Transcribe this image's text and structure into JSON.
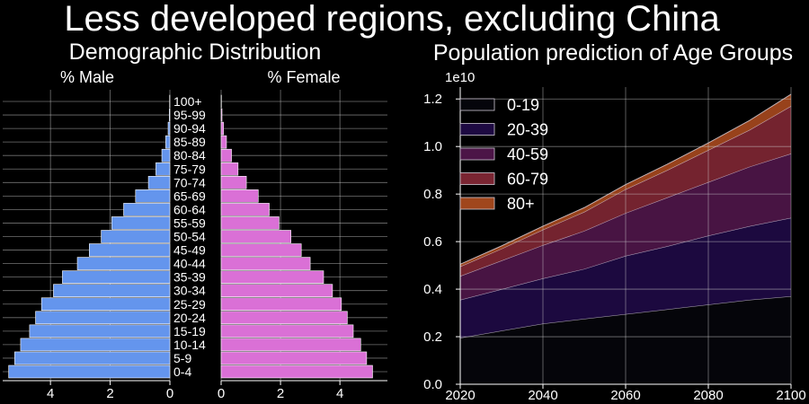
{
  "figure": {
    "suptitle": "Less developed regions, excluding China"
  },
  "chart_data": [
    {
      "type": "bar",
      "orientation": "horizontal",
      "title": "Demographic Distribution",
      "categories": [
        "0-4",
        "5-9",
        "10-14",
        "15-19",
        "20-24",
        "25-29",
        "30-34",
        "35-39",
        "40-44",
        "45-49",
        "50-54",
        "55-59",
        "60-64",
        "65-69",
        "70-74",
        "75-79",
        "80-84",
        "85-89",
        "90-94",
        "95-99",
        "100+"
      ],
      "series": [
        {
          "name": "% Male",
          "color": "#6495ed",
          "values": [
            5.4,
            5.2,
            5.0,
            4.7,
            4.5,
            4.3,
            3.9,
            3.6,
            3.1,
            2.7,
            2.3,
            1.95,
            1.55,
            1.15,
            0.72,
            0.47,
            0.27,
            0.14,
            0.06,
            0.02,
            0.01
          ]
        },
        {
          "name": "% Female",
          "color": "#da70d6",
          "values": [
            5.1,
            4.9,
            4.7,
            4.45,
            4.25,
            4.05,
            3.75,
            3.45,
            3.0,
            2.7,
            2.35,
            1.95,
            1.62,
            1.25,
            0.85,
            0.57,
            0.35,
            0.18,
            0.08,
            0.03,
            0.01
          ]
        }
      ],
      "x_ticks": [
        "0",
        "2",
        "4"
      ],
      "xlim_left": [
        0,
        5.6
      ],
      "xlim_right": [
        0,
        5.6
      ],
      "grid": true
    },
    {
      "type": "area",
      "stacked": true,
      "title": "Population prediction of Age Groups",
      "offset_label": "1e10",
      "x": [
        2020,
        2030,
        2040,
        2050,
        2060,
        2070,
        2080,
        2090,
        2100
      ],
      "series": [
        {
          "name": "0-19",
          "color": "#000004",
          "values": [
            0.195,
            0.225,
            0.255,
            0.275,
            0.295,
            0.315,
            0.335,
            0.355,
            0.37
          ]
        },
        {
          "name": "20-39",
          "color": "#1b0c41",
          "values": [
            0.16,
            0.175,
            0.19,
            0.21,
            0.245,
            0.265,
            0.29,
            0.31,
            0.33
          ]
        },
        {
          "name": "40-59",
          "color": "#4a0c6b",
          "values": [
            0.1,
            0.12,
            0.14,
            0.16,
            0.18,
            0.205,
            0.225,
            0.25,
            0.27
          ]
        },
        {
          "name": "60-79",
          "color": "#781c6d",
          "values": [
            0.04,
            0.05,
            0.065,
            0.08,
            0.1,
            0.115,
            0.135,
            0.155,
            0.2
          ]
        },
        {
          "name": "80+",
          "color": "#bb3754",
          "values": [
            0.01,
            0.012,
            0.015,
            0.018,
            0.02,
            0.025,
            0.03,
            0.04,
            0.05
          ]
        }
      ],
      "area_colors": [
        "#05050b",
        "#1e0a42",
        "#4c1547",
        "#7a2532",
        "#a0461c"
      ],
      "x_ticks": [
        "2020",
        "2040",
        "2060",
        "2080",
        "2100"
      ],
      "y_ticks": [
        "0.0",
        "0.2",
        "0.4",
        "0.6",
        "0.8",
        "1.0",
        "1.2"
      ],
      "xlim": [
        2020,
        2100
      ],
      "ylim": [
        0,
        1.25
      ],
      "grid": true,
      "legend_placement": "top-left"
    }
  ]
}
